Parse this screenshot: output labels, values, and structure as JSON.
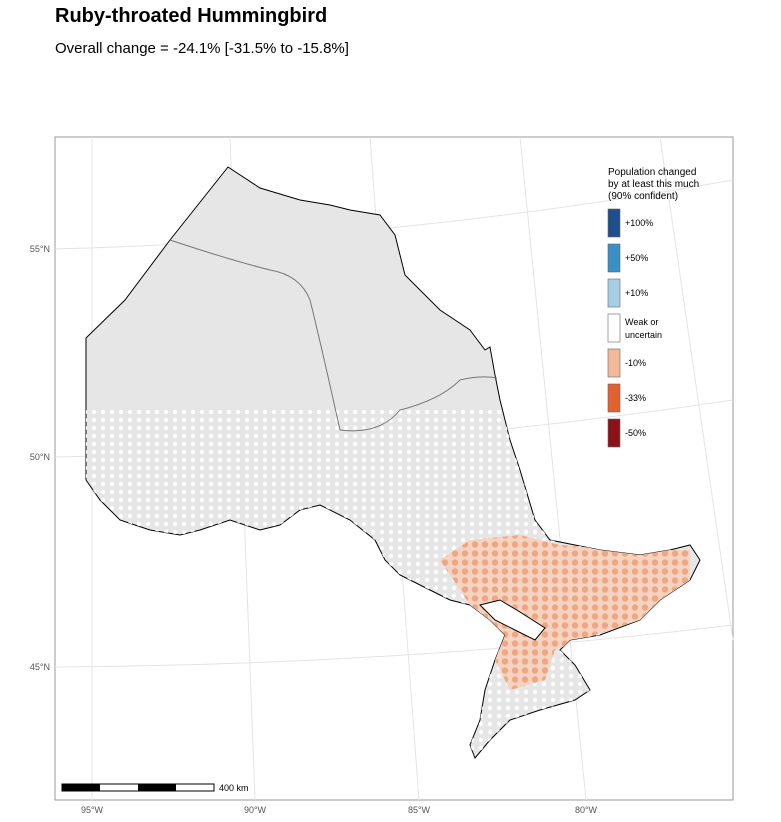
{
  "title": "Ruby-throated Hummingbird",
  "subtitle": "Overall change = -24.1% [-31.5% to -15.8%]",
  "map": {
    "lat_labels": [
      "55°N",
      "50°N",
      "45°N"
    ],
    "lon_labels": [
      "95°W",
      "90°W",
      "85°W",
      "80°W"
    ],
    "scale_label": "400 km",
    "legend": {
      "title": [
        "Population changed",
        "by at least this much",
        "(90% confident)"
      ],
      "entries": [
        {
          "label": [
            "+100%"
          ],
          "color": "#1f4e8c"
        },
        {
          "label": [
            "+50%"
          ],
          "color": "#3a8fc4"
        },
        {
          "label": [
            "+10%"
          ],
          "color": "#a6cfe6"
        },
        {
          "label": [
            "Weak or",
            "uncertain"
          ],
          "color": "#ffffff"
        },
        {
          "label": [
            "-10%"
          ],
          "color": "#f4b89a"
        },
        {
          "label": [
            "-33%"
          ],
          "color": "#e3602f"
        },
        {
          "label": [
            "-50%"
          ],
          "color": "#8c1219"
        }
      ]
    }
  }
}
